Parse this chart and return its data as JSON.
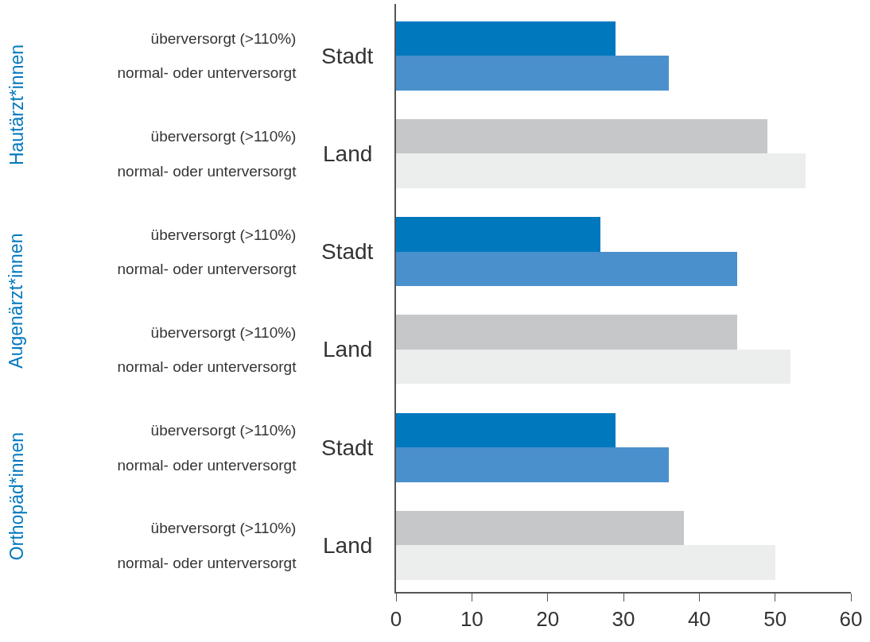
{
  "chart_data": {
    "type": "bar",
    "orientation": "horizontal",
    "categories": [
      "überversorgt (>110%)",
      "normal- oder unterversorgt",
      "überversorgt (>110%)",
      "normal- oder unterversorgt",
      "überversorgt (>110%)",
      "normal- oder unterversorgt",
      "überversorgt (>110%)",
      "normal- oder unterversorgt",
      "überversorgt (>110%)",
      "normal- oder unterversorgt",
      "überversorgt (>110%)",
      "normal- oder unterversorgt"
    ],
    "values": [
      29,
      36,
      49,
      54,
      27,
      45,
      45,
      52,
      29,
      36,
      38,
      50
    ],
    "colors": [
      "#0078be",
      "#4a90cc",
      "#c6c7c9",
      "#eceded",
      "#0078be",
      "#4a90cc",
      "#c6c7c9",
      "#eceded",
      "#0078be",
      "#4a90cc",
      "#c6c7c9",
      "#eceded"
    ],
    "xlim": [
      0,
      60
    ],
    "xticks": [
      0,
      10,
      20,
      30,
      40,
      50,
      60
    ],
    "annotations": [
      "Hautärzt*innen",
      "Stadt",
      "Land",
      "Augenärzt*innen",
      "Stadt",
      "Land",
      "Orthopäd*innen",
      "Stadt",
      "Land"
    ]
  }
}
